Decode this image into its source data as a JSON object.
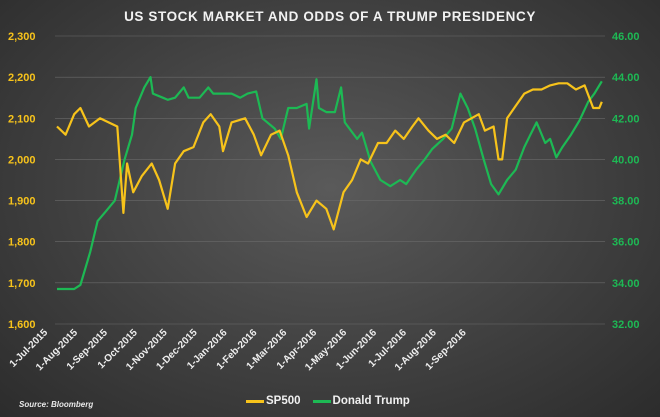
{
  "chart_data": {
    "type": "line",
    "title": "US STOCK MARKET AND ODDS OF A TRUMP PRESIDENCY",
    "source": "Source: Bloomberg",
    "x_tick_labels": [
      "1-Jul-2015",
      "1-Aug-2015",
      "1-Sep-2015",
      "1-Oct-2015",
      "1-Nov-2015",
      "1-Dec-2015",
      "1-Jan-2016",
      "1-Feb-2016",
      "1-Mar-2016",
      "1-Apr-2016",
      "1-May-2016",
      "1-Jun-2016",
      "1-Jul-2016",
      "1-Aug-2016",
      "1-Sep-2016"
    ],
    "x_range": [
      "2015-07-01",
      "2016-09-17"
    ],
    "y_left": {
      "label": "SP500",
      "ylim": [
        1600,
        2300
      ],
      "ticks": [
        "1,600",
        "1,700",
        "1,800",
        "1,900",
        "2,000",
        "2,100",
        "2,200",
        "2,300"
      ]
    },
    "y_right": {
      "label": "Donald Trump",
      "ylim": [
        32,
        46
      ],
      "ticks": [
        "32.00",
        "34.00",
        "36.00",
        "38.00",
        "40.00",
        "42.00",
        "44.00",
        "46.00"
      ]
    },
    "grid": true,
    "legend_position": "bottom-center",
    "series": [
      {
        "name": "SP500",
        "axis": "left",
        "color": "#f7c31b",
        "points": [
          [
            "2015-07-01",
            2080
          ],
          [
            "2015-07-08",
            2060
          ],
          [
            "2015-07-15",
            2110
          ],
          [
            "2015-07-20",
            2125
          ],
          [
            "2015-07-27",
            2080
          ],
          [
            "2015-08-05",
            2100
          ],
          [
            "2015-08-12",
            2090
          ],
          [
            "2015-08-19",
            2080
          ],
          [
            "2015-08-24",
            1870
          ],
          [
            "2015-08-27",
            1990
          ],
          [
            "2015-09-01",
            1920
          ],
          [
            "2015-09-08",
            1960
          ],
          [
            "2015-09-16",
            1990
          ],
          [
            "2015-09-22",
            1950
          ],
          [
            "2015-09-29",
            1880
          ],
          [
            "2015-10-05",
            1990
          ],
          [
            "2015-10-12",
            2020
          ],
          [
            "2015-10-20",
            2030
          ],
          [
            "2015-10-28",
            2090
          ],
          [
            "2015-11-03",
            2110
          ],
          [
            "2015-11-10",
            2080
          ],
          [
            "2015-11-13",
            2020
          ],
          [
            "2015-11-20",
            2090
          ],
          [
            "2015-12-01",
            2100
          ],
          [
            "2015-12-08",
            2060
          ],
          [
            "2015-12-14",
            2010
          ],
          [
            "2015-12-22",
            2060
          ],
          [
            "2015-12-29",
            2070
          ],
          [
            "2016-01-05",
            2010
          ],
          [
            "2016-01-12",
            1920
          ],
          [
            "2016-01-20",
            1860
          ],
          [
            "2016-01-28",
            1900
          ],
          [
            "2016-02-05",
            1880
          ],
          [
            "2016-02-11",
            1830
          ],
          [
            "2016-02-19",
            1920
          ],
          [
            "2016-02-26",
            1950
          ],
          [
            "2016-03-04",
            2000
          ],
          [
            "2016-03-10",
            1990
          ],
          [
            "2016-03-18",
            2040
          ],
          [
            "2016-03-25",
            2040
          ],
          [
            "2016-04-01",
            2070
          ],
          [
            "2016-04-08",
            2050
          ],
          [
            "2016-04-15",
            2080
          ],
          [
            "2016-04-20",
            2100
          ],
          [
            "2016-04-28",
            2070
          ],
          [
            "2016-05-05",
            2050
          ],
          [
            "2016-05-12",
            2060
          ],
          [
            "2016-05-19",
            2040
          ],
          [
            "2016-05-27",
            2090
          ],
          [
            "2016-06-02",
            2100
          ],
          [
            "2016-06-08",
            2110
          ],
          [
            "2016-06-13",
            2070
          ],
          [
            "2016-06-20",
            2080
          ],
          [
            "2016-06-24",
            2000
          ],
          [
            "2016-06-27",
            2000
          ],
          [
            "2016-07-01",
            2100
          ],
          [
            "2016-07-08",
            2130
          ],
          [
            "2016-07-15",
            2160
          ],
          [
            "2016-07-22",
            2170
          ],
          [
            "2016-07-29",
            2170
          ],
          [
            "2016-08-05",
            2180
          ],
          [
            "2016-08-12",
            2185
          ],
          [
            "2016-08-19",
            2185
          ],
          [
            "2016-08-26",
            2170
          ],
          [
            "2016-09-02",
            2180
          ],
          [
            "2016-09-09",
            2125
          ],
          [
            "2016-09-14",
            2125
          ],
          [
            "2016-09-16",
            2140
          ]
        ]
      },
      {
        "name": "Donald Trump",
        "axis": "right",
        "color": "#1db954",
        "points": [
          [
            "2015-07-01",
            33.7
          ],
          [
            "2015-07-15",
            33.7
          ],
          [
            "2015-07-20",
            33.9
          ],
          [
            "2015-07-23",
            34.5
          ],
          [
            "2015-07-28",
            35.5
          ],
          [
            "2015-08-03",
            37
          ],
          [
            "2015-08-10",
            37.5
          ],
          [
            "2015-08-17",
            38
          ],
          [
            "2015-08-25",
            40
          ],
          [
            "2015-08-31",
            41.2
          ],
          [
            "2015-09-03",
            42.5
          ],
          [
            "2015-09-10",
            43.5
          ],
          [
            "2015-09-15",
            44.0
          ],
          [
            "2015-09-17",
            43.2
          ],
          [
            "2015-09-25",
            43
          ],
          [
            "2015-09-29",
            42.9
          ],
          [
            "2015-10-05",
            43
          ],
          [
            "2015-10-12",
            43.5
          ],
          [
            "2015-10-16",
            43
          ],
          [
            "2015-10-25",
            43
          ],
          [
            "2015-11-01",
            43.5
          ],
          [
            "2015-11-05",
            43.2
          ],
          [
            "2015-11-20",
            43.2
          ],
          [
            "2015-11-27",
            43
          ],
          [
            "2015-12-03",
            43.2
          ],
          [
            "2015-12-10",
            43.3
          ],
          [
            "2015-12-15",
            42
          ],
          [
            "2015-12-25",
            41.5
          ],
          [
            "2015-12-30",
            41
          ],
          [
            "2016-01-05",
            42.5
          ],
          [
            "2016-01-12",
            42.5
          ],
          [
            "2016-01-20",
            42.7
          ],
          [
            "2016-01-22",
            41.5
          ],
          [
            "2016-01-28",
            43.9
          ],
          [
            "2016-01-30",
            42.5
          ],
          [
            "2016-02-05",
            42.3
          ],
          [
            "2016-02-12",
            42.3
          ],
          [
            "2016-02-17",
            43.5
          ],
          [
            "2016-02-20",
            41.8
          ],
          [
            "2016-03-01",
            41
          ],
          [
            "2016-03-05",
            41.3
          ],
          [
            "2016-03-12",
            39.9
          ],
          [
            "2016-03-20",
            39.0
          ],
          [
            "2016-03-28",
            38.7
          ],
          [
            "2016-04-05",
            39
          ],
          [
            "2016-04-10",
            38.8
          ],
          [
            "2016-04-18",
            39.5
          ],
          [
            "2016-04-25",
            40
          ],
          [
            "2016-05-01",
            40.5
          ],
          [
            "2016-05-10",
            41
          ],
          [
            "2016-05-17",
            41.5
          ],
          [
            "2016-05-24",
            43.2
          ],
          [
            "2016-05-30",
            42.5
          ],
          [
            "2016-06-05",
            41.5
          ],
          [
            "2016-06-12",
            40
          ],
          [
            "2016-06-18",
            38.8
          ],
          [
            "2016-06-24",
            38.3
          ],
          [
            "2016-07-01",
            39
          ],
          [
            "2016-07-08",
            39.5
          ],
          [
            "2016-07-15",
            40.6
          ],
          [
            "2016-07-20",
            41.2
          ],
          [
            "2016-07-25",
            41.8
          ],
          [
            "2016-08-01",
            40.8
          ],
          [
            "2016-08-05",
            41.0
          ],
          [
            "2016-08-10",
            40.1
          ],
          [
            "2016-08-15",
            40.6
          ],
          [
            "2016-08-22",
            41.2
          ],
          [
            "2016-08-29",
            41.9
          ],
          [
            "2016-09-05",
            42.8
          ],
          [
            "2016-09-10",
            43.2
          ],
          [
            "2016-09-16",
            43.8
          ]
        ]
      }
    ]
  }
}
